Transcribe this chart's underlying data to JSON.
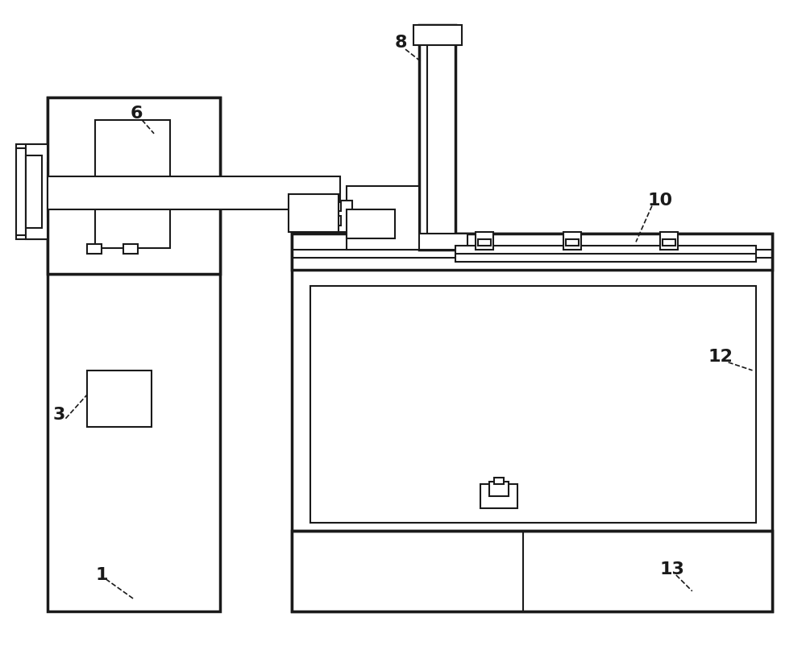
{
  "fig_width": 10.0,
  "fig_height": 8.07,
  "dpi": 100,
  "bg_color": "#ffffff",
  "line_color": "#1a1a1a",
  "lw": 1.5,
  "lw2": 2.5,
  "label_fontsize": 16
}
